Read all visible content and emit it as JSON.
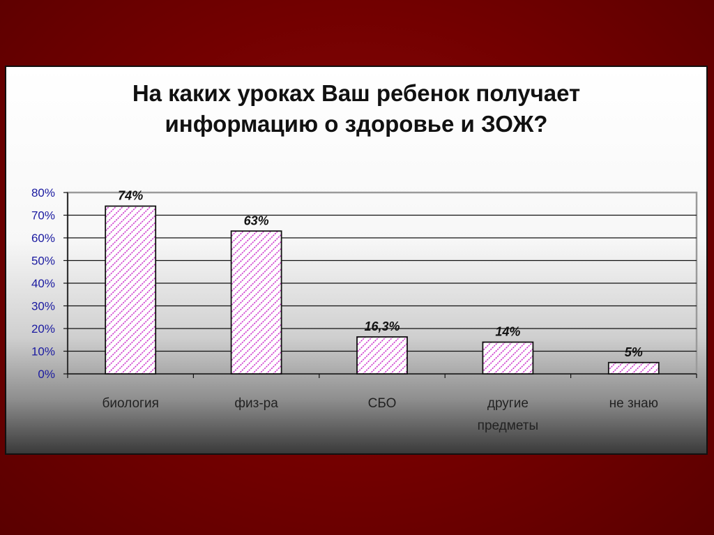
{
  "chart_data": {
    "type": "bar",
    "title_lines": [
      "На каких уроках Ваш ребенок получает",
      "информацию о здоровье и ЗОЖ?"
    ],
    "categories": [
      "биология",
      "физ-ра",
      "СБО",
      "другие предметы",
      "не знаю"
    ],
    "category_label_lines": [
      [
        "биология"
      ],
      [
        "физ-ра"
      ],
      [
        "СБО"
      ],
      [
        "другие",
        "предметы"
      ],
      [
        "не знаю"
      ]
    ],
    "values": [
      74,
      63,
      16.3,
      14,
      5
    ],
    "data_labels": [
      "74%",
      "63%",
      "16,3%",
      "14%",
      "5%"
    ],
    "ylim": [
      0,
      80
    ],
    "yticks": [
      0,
      10,
      20,
      30,
      40,
      50,
      60,
      70,
      80
    ],
    "ytick_labels": [
      "0%",
      "10%",
      "20%",
      "30%",
      "40%",
      "50%",
      "60%",
      "70%",
      "80%"
    ],
    "xlabel": "",
    "ylabel": "",
    "grid": true,
    "legend": "none",
    "colors": {
      "bar_fill_pattern": "#cc33cc",
      "bar_fill_base": "#ffffff",
      "bar_edge": "#111111",
      "tick_label": "#1a1aa0",
      "grid": "#111111",
      "plot_border": "#9a9a9a"
    }
  }
}
